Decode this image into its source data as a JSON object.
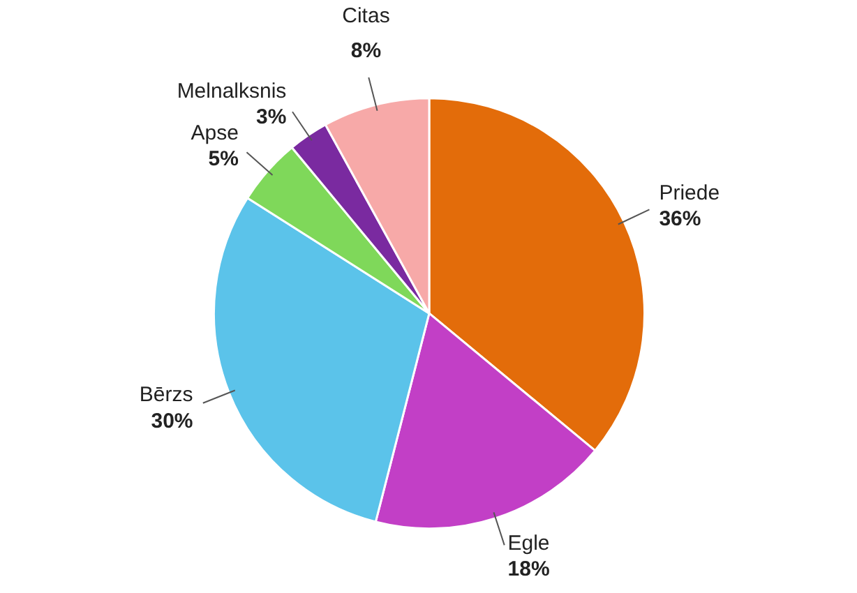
{
  "chart_data": {
    "type": "pie",
    "categories": [
      "Priede",
      "Egle",
      "Bērzs",
      "Apse",
      "Melnalksnis",
      "Citas"
    ],
    "values": [
      36,
      18,
      30,
      5,
      3,
      8
    ],
    "colors": [
      "#e36c0a",
      "#c23fc6",
      "#5bc3ea",
      "#7fd85a",
      "#7a2aa0",
      "#f7a9a8"
    ],
    "value_labels": [
      "36%",
      "18%",
      "30%",
      "5%",
      "3%",
      "8%"
    ]
  }
}
